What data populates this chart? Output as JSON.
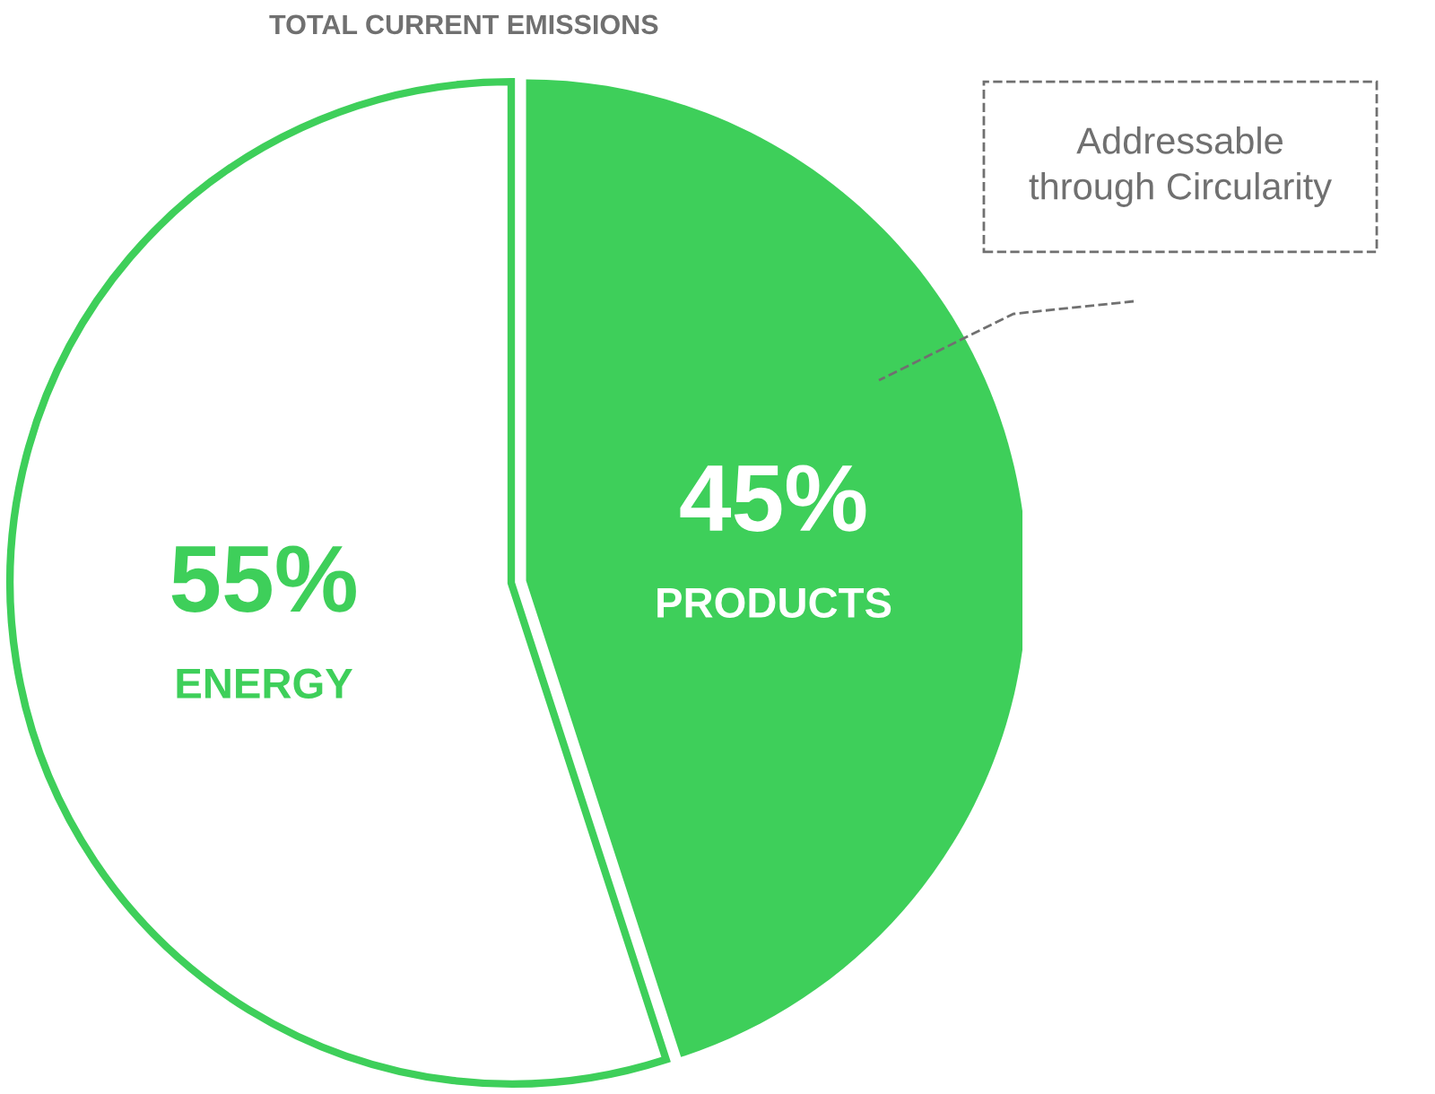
{
  "chart_data": {
    "type": "pie",
    "title": "TOTAL CURRENT EMISSIONS",
    "categories": [
      "PRODUCTS",
      "ENERGY"
    ],
    "values": [
      45,
      55
    ],
    "colors": [
      "#3ecf5a",
      "#ffffff"
    ],
    "value_labels": [
      "45%",
      "55%"
    ],
    "annotations": [
      "Addressable\nthrough Circularity"
    ]
  }
}
